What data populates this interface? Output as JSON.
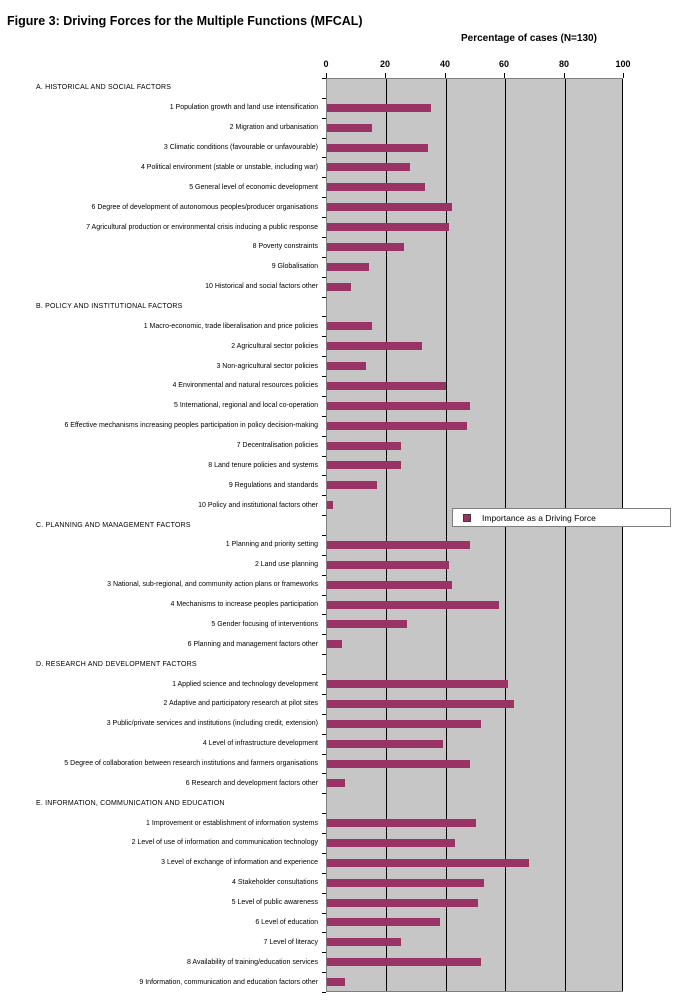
{
  "title": "Figure 3: Driving Forces for the Multiple Functions (MFCAL)",
  "colors": {
    "bar": "#993366",
    "plot_background": "#c6c6c6",
    "gridline": "#000000",
    "plot_border": "#7f7f7f"
  },
  "chart_data": {
    "type": "bar",
    "orientation": "horizontal",
    "title": "Figure 3: Driving Forces for the Multiple Functions (MFCAL)",
    "xlabel": "Percentage of cases (N=130)",
    "xlim": [
      0,
      100
    ],
    "xticks": [
      0,
      20,
      40,
      60,
      80,
      100
    ],
    "grid": true,
    "legend_label": "Importance as a Driving Force",
    "legend_position": "middle-right",
    "sections": [
      {
        "header": "A. HISTORICAL AND SOCIAL FACTORS",
        "items": [
          {
            "label": "1 Population growth and land use intensification",
            "value": 35
          },
          {
            "label": "2 Migration and urbanisation",
            "value": 15
          },
          {
            "label": "3 Climatic conditions (favourable or unfavourable)",
            "value": 34
          },
          {
            "label": "4 Political environment (stable or unstable, including war)",
            "value": 28
          },
          {
            "label": "5 General level of economic development",
            "value": 33
          },
          {
            "label": "6 Degree of development of autonomous peoples/producer organisations",
            "value": 42
          },
          {
            "label": "7 Agricultural production or environmental crisis inducing a public response",
            "value": 41
          },
          {
            "label": "8 Poverty constraints",
            "value": 26
          },
          {
            "label": "9 Globalisation",
            "value": 14
          },
          {
            "label": "10 Historical and social factors other",
            "value": 8
          }
        ]
      },
      {
        "header": "B. POLICY AND INSTITUTIONAL FACTORS",
        "items": [
          {
            "label": "1 Macro-economic, trade liberalisation and price policies",
            "value": 15
          },
          {
            "label": "2 Agricultural sector policies",
            "value": 32
          },
          {
            "label": "3 Non-agricultural sector policies",
            "value": 13
          },
          {
            "label": "4 Environmental and natural resources policies",
            "value": 40
          },
          {
            "label": "5 International, regional and local co-operation",
            "value": 48
          },
          {
            "label": "6 Effective mechanisms increasing peoples participation in policy decision-making",
            "value": 47
          },
          {
            "label": "7 Decentralisation policies",
            "value": 25
          },
          {
            "label": "8 Land tenure policies and systems",
            "value": 25
          },
          {
            "label": "9 Regulations and standards",
            "value": 17
          },
          {
            "label": "10 Policy and institutional factors other",
            "value": 2
          }
        ]
      },
      {
        "header": "C. PLANNING AND MANAGEMENT FACTORS",
        "items": [
          {
            "label": "1 Planning and priority setting",
            "value": 48
          },
          {
            "label": "2 Land use planning",
            "value": 41
          },
          {
            "label": "3 National, sub-regional, and community action plans or frameworks",
            "value": 42
          },
          {
            "label": "4 Mechanisms to increase peoples participation",
            "value": 58
          },
          {
            "label": "5 Gender focusing of interventions",
            "value": 27
          },
          {
            "label": "6 Planning and management factors other",
            "value": 5
          }
        ]
      },
      {
        "header": "D. RESEARCH AND DEVELOPMENT FACTORS",
        "items": [
          {
            "label": "1 Applied science and technology development",
            "value": 61
          },
          {
            "label": "2 Adaptive and participatory research at pilot sites",
            "value": 63
          },
          {
            "label": "3 Public/private services and institutions (including credit, extension)",
            "value": 52
          },
          {
            "label": "4 Level of infrastructure development",
            "value": 39
          },
          {
            "label": "5 Degree of collaboration between research institutions and farmers organisations",
            "value": 48
          },
          {
            "label": "6 Research and development factors other",
            "value": 6
          }
        ]
      },
      {
        "header": "E. INFORMATION, COMMUNICATION AND EDUCATION",
        "items": [
          {
            "label": "1 Improvement or establishment of information systems",
            "value": 50
          },
          {
            "label": "2 Level of use of information and communication technology",
            "value": 43
          },
          {
            "label": "3 Level of exchange of information and experience",
            "value": 68
          },
          {
            "label": "4 Stakeholder consultations",
            "value": 53
          },
          {
            "label": "5 Level of public awareness",
            "value": 51
          },
          {
            "label": "6 Level of education",
            "value": 38
          },
          {
            "label": "7 Level of literacy",
            "value": 25
          },
          {
            "label": "8 Availability of training/education services",
            "value": 52
          },
          {
            "label": "9 Information, communication and education factors other",
            "value": 6
          }
        ]
      }
    ]
  }
}
